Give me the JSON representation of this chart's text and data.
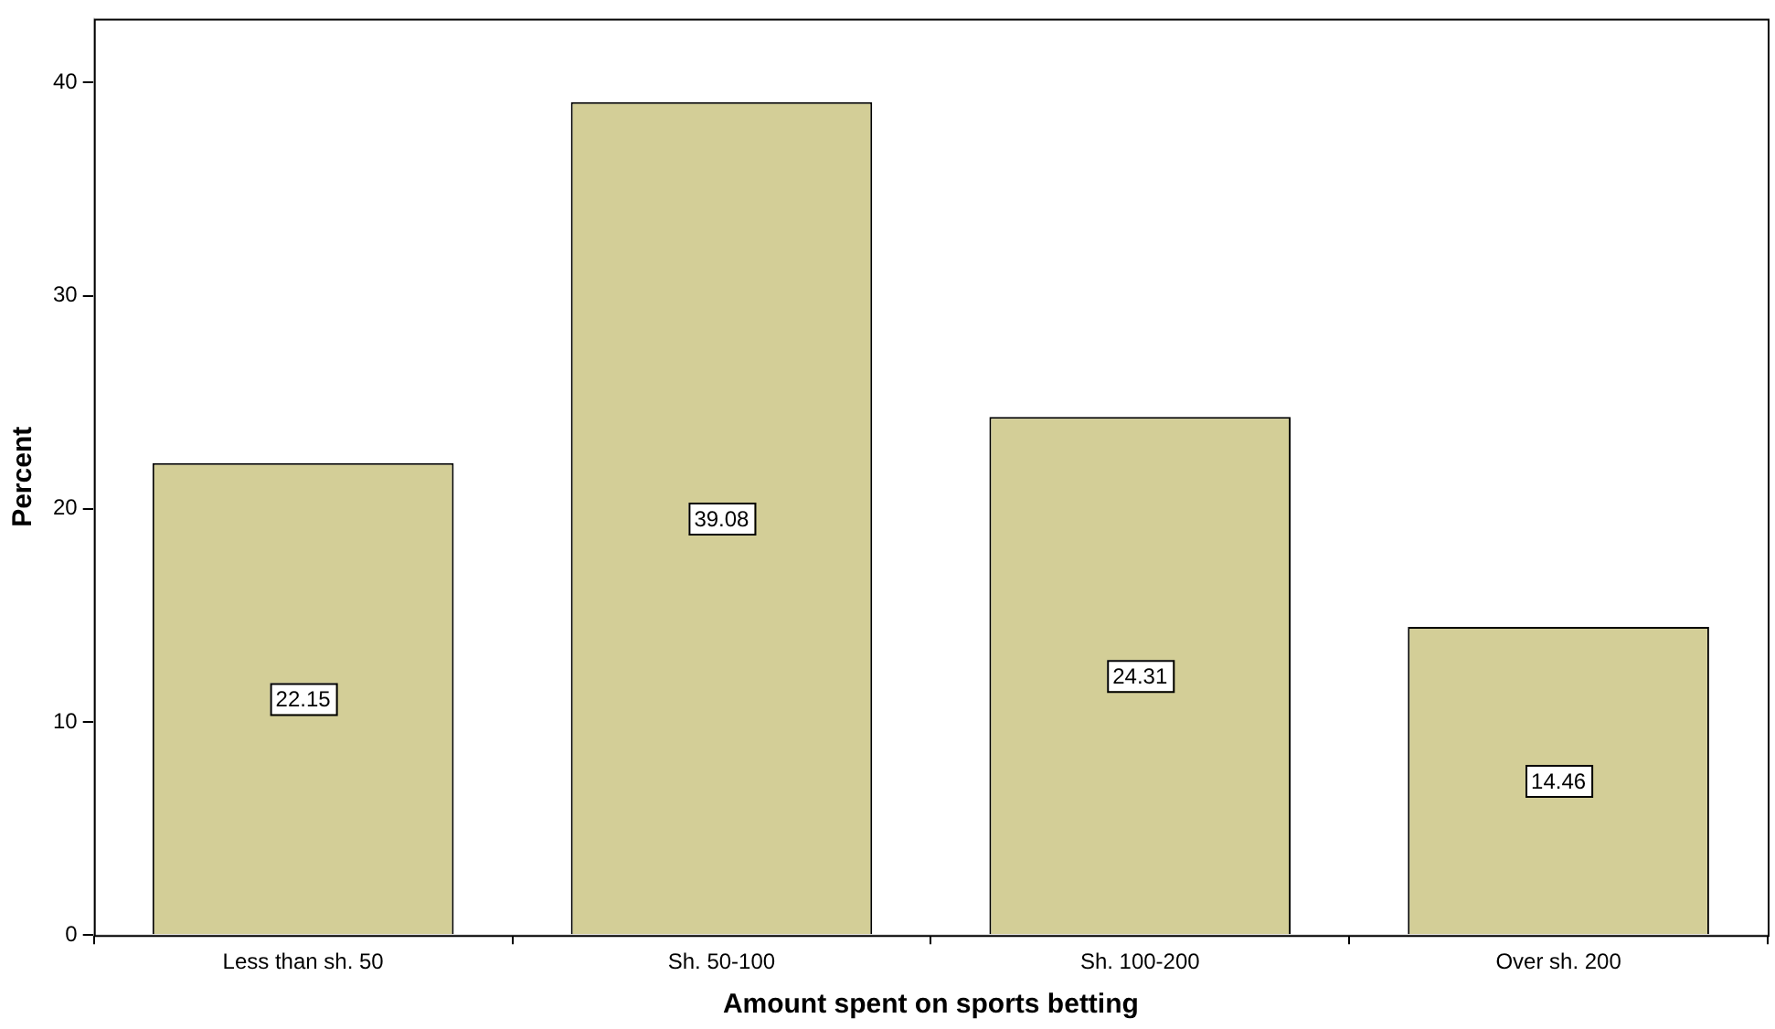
{
  "chart_data": {
    "type": "bar",
    "xlabel": "Amount spent on sports betting",
    "ylabel": "Percent",
    "categories": [
      "Less than sh. 50",
      "Sh. 50-100",
      "Sh. 100-200",
      "Over sh. 200"
    ],
    "values": [
      22.15,
      39.08,
      24.31,
      14.46
    ],
    "color": "#d3ce97",
    "ylim": [
      0,
      43
    ],
    "yticks": [
      0,
      10,
      20,
      30,
      40
    ],
    "grid": false,
    "legend": false,
    "data_labels": true
  }
}
